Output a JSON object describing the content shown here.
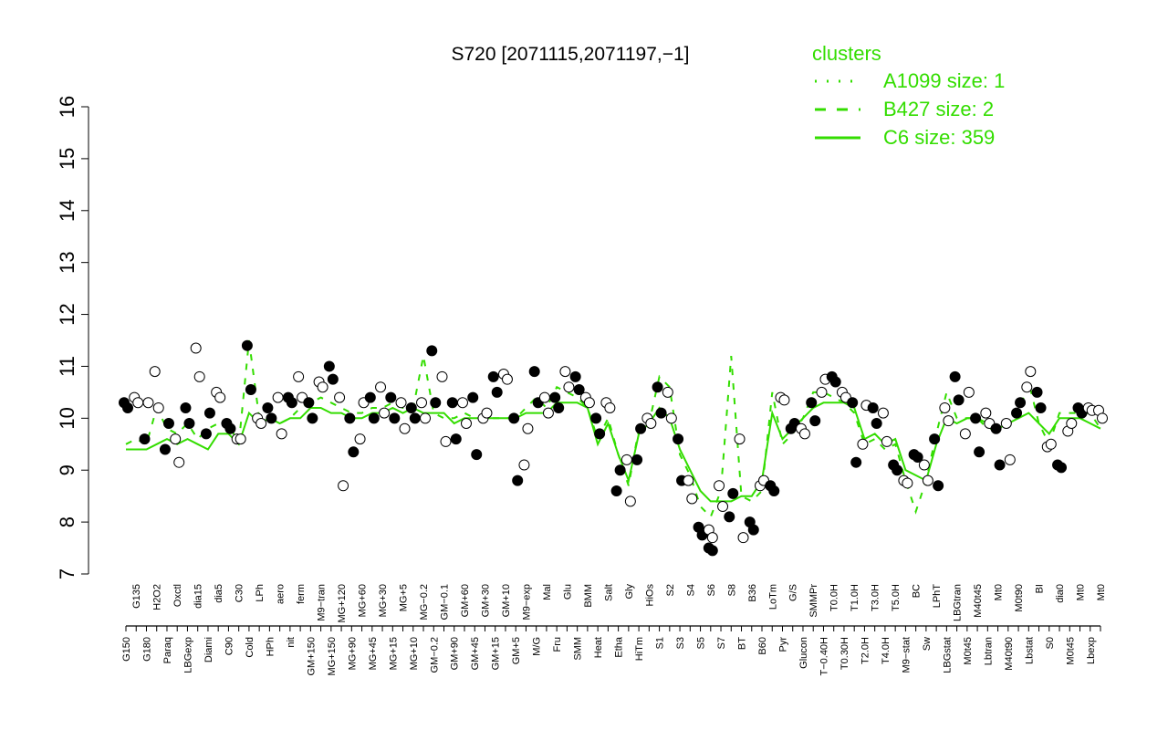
{
  "chart_data": {
    "type": "scatter",
    "title": "S720 [2071115,2071197,−1]",
    "xlabel": "",
    "ylabel": "",
    "ylim": [
      7,
      16
    ],
    "yticks": [
      7,
      8,
      9,
      10,
      11,
      12,
      13,
      14,
      15,
      16
    ],
    "grid": false,
    "legend_position": "top-right",
    "legend": {
      "title": "clusters",
      "entries": [
        {
          "label": "A1099 size: 1",
          "style": "dotted"
        },
        {
          "label": "B427 size: 2",
          "style": "dashed"
        },
        {
          "label": "C6 size: 359",
          "style": "solid"
        }
      ]
    },
    "colors": {
      "line": "#33dd00",
      "point_filled": "#000000",
      "point_open": "#ffffff",
      "axis": "#000000"
    },
    "x_tick_labels": [
      "G150",
      "G135",
      "G180",
      "H2O2",
      "Paraq",
      "Oxctl",
      "LBGexp",
      "dia15",
      "Diami",
      "dia5",
      "C90",
      "C30",
      "Cold",
      "LPh",
      "HPh",
      "aero",
      "nit",
      "ferm",
      "GM+150",
      "M9−tran",
      "MG+150",
      "MG+120",
      "MG+90",
      "MG+60",
      "MG+45",
      "MG+30",
      "MG+15",
      "MG+5",
      "MG+10",
      "MG−0.2",
      "GM−0.2",
      "GM−0.1",
      "GM+90",
      "GM+60",
      "GM+45",
      "GM+30",
      "GM+15",
      "GM+10",
      "GM+5",
      "M9−exp",
      "M/G",
      "Mal",
      "Fru",
      "Glu",
      "SMM",
      "BMM",
      "Heat",
      "Salt",
      "Etha",
      "Gly",
      "HiTm",
      "HiOs",
      "S1",
      "S2",
      "S3",
      "S4",
      "S5",
      "S6",
      "S7",
      "S8",
      "BT",
      "B36",
      "B60",
      "LoTm",
      "Pyr",
      "G/S",
      "Glucon",
      "SMMPr",
      "T−0.40H",
      "T0.0H",
      "T0.30H",
      "T1.0H",
      "T2.0H",
      "T3.0H",
      "T4.0H",
      "T5.0H",
      "M9−stat",
      "BC",
      "Sw",
      "LPhT",
      "LBGstat",
      "LBGtran",
      "M0t45",
      "M40t45",
      "Lbtran",
      "Mt0",
      "M40t90",
      "M0t90",
      "Lbstat",
      "BI",
      "S0",
      "dia0",
      "M0t45",
      "Mt0",
      "Lbexp",
      "Mt0"
    ],
    "series": [
      {
        "name": "C6 size: 359",
        "style": "solid",
        "values": [
          9.4,
          9.4,
          9.4,
          9.5,
          9.6,
          9.5,
          9.6,
          9.5,
          9.4,
          9.7,
          9.7,
          9.5,
          10.1,
          9.9,
          10.0,
          9.9,
          10.0,
          10.0,
          10.2,
          10.2,
          10.1,
          10.1,
          10.0,
          10.0,
          10.1,
          10.1,
          10.2,
          10.1,
          10.2,
          10.1,
          10.1,
          10.1,
          9.9,
          10.0,
          10.0,
          10.0,
          10.0,
          10.0,
          10.0,
          10.1,
          10.1,
          10.1,
          10.3,
          10.3,
          10.3,
          10.2,
          9.5,
          9.9,
          9.3,
          8.8,
          9.7,
          9.9,
          10.2,
          10.0,
          9.4,
          9.0,
          8.6,
          8.4,
          8.4,
          8.4,
          8.5,
          8.5,
          8.8,
          10.1,
          9.6,
          9.8,
          10.0,
          10.2,
          10.3,
          10.3,
          10.3,
          10.2,
          9.6,
          9.7,
          9.5,
          9.6,
          9.0,
          8.9,
          8.8,
          9.5,
          10.0,
          9.9,
          10.0,
          10.0,
          9.9,
          9.8,
          9.9,
          10.0,
          10.1,
          9.9,
          9.7,
          10.0,
          10.0,
          10.0,
          9.9,
          9.8
        ]
      },
      {
        "name": "B427 size: 2",
        "style": "dashed",
        "values": [
          9.5,
          9.6,
          9.5,
          10.2,
          9.8,
          9.7,
          9.9,
          9.6,
          9.8,
          9.9,
          9.9,
          9.5,
          11.5,
          10.0,
          10.0,
          9.9,
          10.0,
          10.2,
          10.3,
          10.4,
          10.3,
          10.2,
          10.1,
          10.1,
          10.2,
          10.2,
          10.3,
          10.2,
          10.2,
          11.2,
          10.1,
          10.0,
          10.0,
          10.1,
          10.0,
          10.0,
          10.0,
          10.0,
          10.0,
          10.2,
          10.4,
          10.2,
          10.6,
          10.5,
          10.4,
          10.2,
          9.6,
          10.0,
          9.3,
          8.7,
          9.8,
          9.9,
          10.8,
          10.6,
          9.3,
          8.9,
          8.3,
          8.1,
          8.6,
          11.2,
          8.5,
          8.4,
          8.6,
          10.5,
          9.5,
          9.7,
          10.0,
          10.5,
          10.5,
          10.4,
          10.3,
          10.1,
          9.5,
          9.6,
          9.4,
          9.5,
          8.8,
          8.2,
          8.8,
          9.7,
          10.5,
          10.0,
          10.0,
          10.0,
          9.8,
          9.8,
          9.9,
          10.1,
          10.7,
          9.9,
          9.5,
          10.1,
          10.1,
          10.1,
          10.1,
          9.8
        ]
      },
      {
        "name": "A1099 size: 1",
        "style": "dotted",
        "values": []
      }
    ],
    "points": {
      "x_index": [
        0,
        0,
        1,
        1,
        2,
        2,
        3,
        3,
        4,
        4,
        5,
        5,
        6,
        6,
        7,
        7,
        8,
        8,
        9,
        9,
        10,
        10,
        11,
        11,
        12,
        12,
        13,
        13,
        14,
        14,
        15,
        15,
        16,
        16,
        17,
        17,
        18,
        18,
        19,
        19,
        20,
        20,
        21,
        21,
        22,
        22,
        23,
        23,
        24,
        24,
        25,
        25,
        26,
        26,
        27,
        27,
        28,
        28,
        29,
        29,
        30,
        30,
        31,
        31,
        32,
        32,
        33,
        33,
        34,
        34,
        35,
        35,
        36,
        36,
        37,
        37,
        38,
        38,
        39,
        39,
        40,
        40,
        41,
        41,
        42,
        42,
        43,
        43,
        44,
        44,
        45,
        45,
        46,
        46,
        47,
        47,
        48,
        48,
        49,
        49,
        50,
        50,
        51,
        51,
        52,
        52,
        53,
        53,
        54,
        54,
        55,
        55,
        56,
        56,
        57,
        57,
        57,
        57,
        58,
        58,
        59,
        59,
        60,
        60,
        61,
        61,
        62,
        62,
        63,
        63,
        64,
        64,
        65,
        65,
        66,
        66,
        67,
        67,
        68,
        68,
        69,
        69,
        70,
        70,
        71,
        71,
        72,
        72,
        73,
        73,
        74,
        74,
        75,
        75,
        76,
        76,
        77,
        77,
        78,
        78,
        79,
        79,
        80,
        80,
        81,
        81,
        82,
        82,
        83,
        83,
        84,
        84,
        85,
        85,
        86,
        86,
        87,
        87,
        88,
        88,
        89,
        89,
        90,
        90,
        91,
        91,
        92,
        92,
        93,
        93,
        94,
        94,
        95,
        95
      ],
      "y": [
        10.3,
        10.2,
        10.4,
        10.3,
        9.6,
        10.3,
        10.9,
        10.2,
        9.4,
        9.9,
        9.6,
        9.15,
        10.2,
        9.9,
        11.35,
        10.8,
        9.7,
        10.1,
        10.5,
        10.4,
        9.9,
        9.8,
        9.6,
        9.6,
        11.4,
        10.55,
        10.0,
        9.9,
        10.2,
        10.0,
        10.4,
        9.7,
        10.4,
        10.3,
        10.8,
        10.4,
        10.3,
        10.0,
        10.7,
        10.6,
        11.0,
        10.75,
        10.4,
        8.7,
        10.0,
        9.35,
        9.6,
        10.3,
        10.4,
        10.0,
        10.6,
        10.1,
        10.4,
        10.0,
        10.3,
        9.8,
        10.2,
        10.0,
        10.3,
        10.0,
        11.3,
        10.3,
        10.8,
        9.55,
        10.3,
        9.6,
        10.3,
        9.9,
        10.4,
        9.3,
        10.0,
        10.1,
        10.8,
        10.5,
        10.85,
        10.75,
        10.0,
        8.8,
        9.1,
        9.8,
        10.9,
        10.3,
        10.4,
        10.1,
        10.4,
        10.2,
        10.9,
        10.6,
        10.8,
        10.55,
        10.4,
        10.3,
        10.0,
        9.7,
        10.3,
        10.2,
        8.6,
        9.0,
        9.2,
        8.4,
        9.2,
        9.8,
        10.0,
        9.9,
        10.6,
        10.1,
        10.5,
        10.0,
        9.6,
        8.8,
        8.8,
        8.45,
        7.9,
        7.75,
        7.85,
        7.7,
        7.5,
        7.45,
        8.7,
        8.3,
        8.1,
        8.55,
        9.6,
        7.7,
        8.0,
        7.85,
        8.7,
        8.8,
        8.7,
        8.6,
        10.4,
        10.35,
        9.8,
        9.9,
        9.8,
        9.7,
        10.3,
        9.95,
        10.5,
        10.75,
        10.8,
        10.7,
        10.5,
        10.4,
        10.3,
        9.15,
        9.5,
        10.25,
        10.2,
        9.9,
        10.1,
        9.55,
        9.1,
        9.0,
        8.8,
        8.75,
        9.3,
        9.25,
        9.1,
        8.8,
        9.6,
        8.7,
        10.2,
        9.95,
        10.8,
        10.35,
        9.7,
        10.5,
        10.0,
        9.35,
        10.1,
        9.9,
        9.8,
        9.1,
        9.9,
        9.2,
        10.1,
        10.3,
        10.6,
        10.9,
        10.5,
        10.2,
        9.45,
        9.5,
        9.1,
        9.05,
        9.75,
        9.9,
        10.2,
        10.1,
        10.2,
        10.15,
        10.15,
        10.0
      ],
      "filled": [
        true,
        true,
        false,
        false,
        true,
        false,
        false,
        false,
        true,
        true,
        false,
        false,
        true,
        true,
        false,
        false,
        true,
        true,
        false,
        false,
        true,
        true,
        false,
        false,
        true,
        true,
        false,
        false,
        true,
        true,
        false,
        false,
        true,
        true,
        false,
        false,
        true,
        true,
        false,
        false,
        true,
        true,
        false,
        false,
        true,
        true,
        false,
        false,
        true,
        true,
        false,
        false,
        true,
        true,
        false,
        false,
        true,
        true,
        false,
        false,
        true,
        true,
        false,
        false,
        true,
        true,
        false,
        false,
        true,
        true,
        false,
        false,
        true,
        true,
        false,
        false,
        true,
        true,
        false,
        false,
        true,
        true,
        false,
        false,
        true,
        true,
        false,
        false,
        true,
        true,
        false,
        false,
        true,
        true,
        false,
        false,
        true,
        true,
        false,
        false,
        true,
        true,
        false,
        false,
        true,
        true,
        false,
        false,
        true,
        true,
        false,
        false,
        true,
        true,
        false,
        false,
        true,
        true,
        false,
        false,
        true,
        true,
        false,
        false,
        true,
        true,
        false,
        false,
        true,
        true,
        false,
        false,
        true,
        true,
        false,
        false,
        true,
        true,
        false,
        false,
        true,
        true,
        false,
        false,
        true,
        true,
        false,
        false,
        true,
        true,
        false,
        false,
        true,
        true,
        false,
        false,
        true,
        true,
        false,
        false,
        true,
        true,
        false,
        false,
        true,
        true,
        false,
        false,
        true,
        true,
        false,
        false,
        true,
        true,
        false,
        false,
        true,
        true,
        false,
        false,
        true,
        true,
        false,
        false,
        true,
        true,
        false,
        false,
        true,
        true,
        false,
        false
      ]
    }
  }
}
